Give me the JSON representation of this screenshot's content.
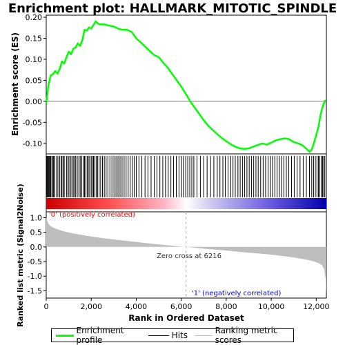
{
  "chart_data": {
    "type": "line",
    "title": "Enrichment plot: HALLMARK_MITOTIC_SPINDLE",
    "xlabel": "Rank in Ordered Dataset",
    "colors": {
      "es_line": "#00ff00",
      "hits": "#000000",
      "metric_fill": "#bebebe",
      "zero_line": "#b3b3b3",
      "positive_label": "#ff0000",
      "negative_label": "#0000ff"
    },
    "top_panel": {
      "ylabel": "Enrichment score (ES)",
      "ylim": [
        -0.125,
        0.205
      ],
      "yticks": [
        "0.20",
        "0.15",
        "0.10",
        "0.05",
        "0.00",
        "-0.05",
        "-0.10"
      ],
      "ytick_values": [
        0.2,
        0.15,
        0.1,
        0.05,
        0.0,
        -0.05,
        -0.1
      ],
      "series": [
        {
          "x": [
            0,
            100,
            200,
            300,
            400,
            500,
            600,
            700,
            800,
            900,
            1000,
            1100,
            1200,
            1300,
            1400,
            1500,
            1600,
            1700,
            1800,
            1900,
            2000,
            2100,
            2200,
            2300,
            2400,
            2600,
            2800,
            3000,
            3200,
            3400,
            3600,
            3800,
            4000,
            4200,
            4400,
            4600,
            4800,
            5000,
            5200,
            5400,
            5600,
            5800,
            6000,
            6200,
            6400,
            6600,
            6800,
            7000,
            7200,
            7400,
            7600,
            7800,
            8000,
            8200,
            8400,
            8600,
            8800,
            9000,
            9200,
            9400,
            9600,
            9800,
            10000,
            10200,
            10400,
            10600,
            10800,
            11000,
            11200,
            11400,
            11600,
            11700,
            11800,
            11900,
            12000,
            12100,
            12200,
            12300,
            12400
          ],
          "y": [
            -0.005,
            0.04,
            0.062,
            0.065,
            0.072,
            0.066,
            0.078,
            0.095,
            0.09,
            0.105,
            0.118,
            0.112,
            0.125,
            0.128,
            0.138,
            0.132,
            0.145,
            0.17,
            0.168,
            0.176,
            0.173,
            0.182,
            0.19,
            0.185,
            0.183,
            0.183,
            0.18,
            0.178,
            0.173,
            0.17,
            0.17,
            0.165,
            0.15,
            0.14,
            0.13,
            0.12,
            0.11,
            0.105,
            0.092,
            0.08,
            0.065,
            0.05,
            0.035,
            0.018,
            0.0,
            -0.015,
            -0.03,
            -0.045,
            -0.058,
            -0.068,
            -0.078,
            -0.087,
            -0.095,
            -0.102,
            -0.108,
            -0.112,
            -0.113,
            -0.112,
            -0.108,
            -0.104,
            -0.1,
            -0.103,
            -0.098,
            -0.093,
            -0.09,
            -0.088,
            -0.09,
            -0.097,
            -0.1,
            -0.105,
            -0.115,
            -0.12,
            -0.115,
            -0.098,
            -0.08,
            -0.06,
            -0.03,
            -0.01,
            0.003
          ]
        }
      ]
    },
    "hits": [
      15,
      40,
      70,
      100,
      130,
      160,
      200,
      250,
      300,
      330,
      380,
      460,
      520,
      600,
      660,
      700,
      760,
      800,
      900,
      960,
      1010,
      1080,
      1140,
      1200,
      1250,
      1310,
      1380,
      1450,
      1510,
      1580,
      1650,
      1700,
      1760,
      1820,
      1870,
      1930,
      2000,
      2050,
      2100,
      2160,
      2220,
      2280,
      2350,
      2420,
      2500,
      2580,
      2660,
      2740,
      2830,
      2920,
      3010,
      3100,
      3190,
      3280,
      3370,
      3460,
      3550,
      3640,
      3730,
      3820,
      3910,
      4000,
      4120,
      4250,
      4390,
      4520,
      4660,
      4800,
      4920,
      5050,
      5180,
      5300,
      5420,
      5540,
      5660,
      5780,
      5900,
      6010,
      6100,
      6200,
      6290,
      6380,
      6470,
      6560,
      6700,
      6850,
      7000,
      7150,
      7300,
      7450,
      7600,
      7720,
      7850,
      7960,
      8080,
      8200,
      8300,
      8400,
      8520,
      8620,
      8720,
      8820,
      8920,
      9020,
      9120,
      9220,
      9320,
      9420,
      9530,
      9640,
      9750,
      9860,
      9960,
      10060,
      10160,
      10260,
      10360,
      10460,
      10560,
      10670,
      10780,
      10900,
      11020,
      11150,
      11280,
      11420,
      11560,
      11700,
      11800,
      11880,
      11960,
      12030,
      12100,
      12160,
      12220,
      12280,
      12330,
      12380
    ],
    "bottom_panel": {
      "ylabel": "Ranked list metric (Signal2Noise)",
      "ylim": [
        -1.75,
        1.2
      ],
      "yticks": [
        "1.0",
        "0.5",
        "0.0",
        "-0.5",
        "-1.0",
        "-1.5"
      ],
      "ytick_values": [
        1.0,
        0.5,
        0.0,
        -0.5,
        -1.0,
        -1.5
      ],
      "metric": {
        "x": [
          0,
          30,
          80,
          150,
          300,
          500,
          800,
          1200,
          1800,
          2500,
          3200,
          4000,
          4800,
          5500,
          6000,
          6216,
          6500,
          7000,
          7800,
          8600,
          9400,
          10200,
          10800,
          11300,
          11700,
          11900,
          12100,
          12250,
          12350,
          12420,
          12450
        ],
        "y": [
          1.02,
          0.92,
          0.82,
          0.74,
          0.66,
          0.6,
          0.53,
          0.46,
          0.38,
          0.3,
          0.24,
          0.17,
          0.1,
          0.05,
          0.01,
          0.0,
          -0.02,
          -0.06,
          -0.11,
          -0.17,
          -0.22,
          -0.28,
          -0.34,
          -0.4,
          -0.46,
          -0.5,
          -0.55,
          -0.62,
          -0.75,
          -1.1,
          -1.62
        ]
      }
    },
    "x_range": [
      0,
      12450
    ],
    "xticks": [
      "0",
      "2,000",
      "4,000",
      "6,000",
      "8,000",
      "10,000",
      "12,000"
    ],
    "xtick_values": [
      0,
      2000,
      4000,
      6000,
      8000,
      10000,
      12000
    ],
    "zero_cross_value": 6216,
    "annotations": {
      "zero_cross": "Zero cross at 6216",
      "positive": "'0' (positively correlated)",
      "negative": "'1' (negatively correlated)"
    },
    "legend": [
      {
        "label": "Enrichment profile",
        "color": "#00ff00"
      },
      {
        "label": "Hits",
        "color": "#000000"
      },
      {
        "label": "Ranking metric scores",
        "color": "#bebebe"
      }
    ]
  }
}
